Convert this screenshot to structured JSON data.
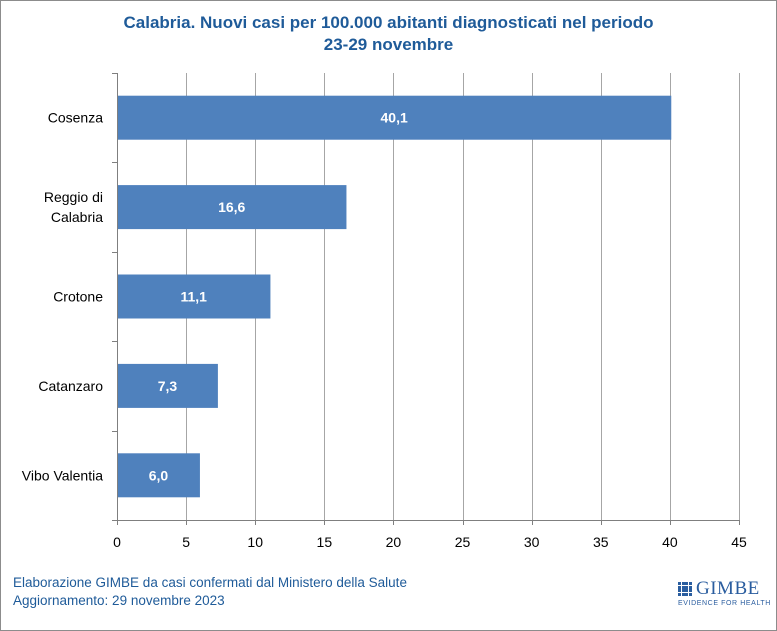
{
  "title_line1": "Calabria. Nuovi casi per 100.000 abitanti diagnosticati nel periodo",
  "title_line2": "23-29 novembre",
  "footer": {
    "line1": "Elaborazione GIMBE da casi confermati dal Ministero della Salute",
    "line2": "Aggiornamento: 29 novembre 2023"
  },
  "logo": {
    "word": "GIMBE",
    "tagline": "EVIDENCE FOR HEALTH"
  },
  "colors": {
    "bar": "#4f81bd",
    "title": "#1f5b99",
    "grid": "#a6a6a6"
  },
  "chart_data": {
    "type": "bar",
    "orientation": "horizontal",
    "categories": [
      [
        "Cosenza"
      ],
      [
        "Reggio di",
        "Calabria"
      ],
      [
        "Crotone"
      ],
      [
        "Catanzaro"
      ],
      [
        "Vibo Valentia"
      ]
    ],
    "values": [
      40.1,
      16.6,
      11.1,
      7.3,
      6.0
    ],
    "value_labels": [
      "40,1",
      "16,6",
      "11,1",
      "7,3",
      "6,0"
    ],
    "xlim": [
      0,
      45
    ],
    "xticks": [
      0,
      5,
      10,
      15,
      20,
      25,
      30,
      35,
      40,
      45
    ],
    "grid": true,
    "legend": "none"
  }
}
